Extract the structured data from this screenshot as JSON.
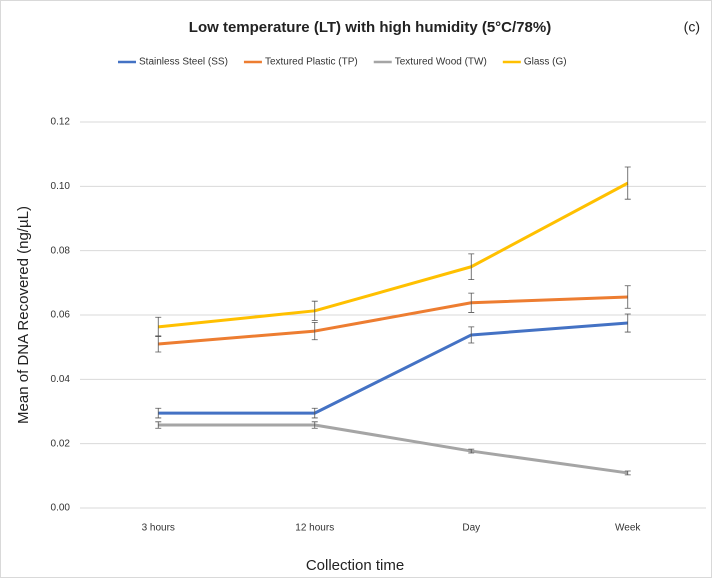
{
  "chart_data": {
    "type": "line",
    "title": "Low temperature (LT) with high humidity (5°C/78%)",
    "panel_label": "(c)",
    "x_label": "Collection time",
    "y_label": "Mean of DNA Recovered (ng/µL)",
    "categories": [
      "3 hours",
      "12 hours",
      "Day",
      "Week"
    ],
    "series": [
      {
        "name": "Stainless Steel (SS)",
        "color": "#4472c4",
        "values": [
          0.0295,
          0.0295,
          0.0538,
          0.0575
        ],
        "errors": [
          0.0015,
          0.0015,
          0.0025,
          0.0028
        ]
      },
      {
        "name": "Textured Plastic (TP)",
        "color": "#ed7d31",
        "values": [
          0.051,
          0.055,
          0.0638,
          0.0656
        ],
        "errors": [
          0.0025,
          0.0027,
          0.003,
          0.0035
        ]
      },
      {
        "name": "Textured Wood (TW)",
        "color": "#a5a5a5",
        "values": [
          0.0258,
          0.0258,
          0.0177,
          0.0109
        ],
        "errors": [
          0.001,
          0.001,
          0.0006,
          0.0006
        ]
      },
      {
        "name": "Glass (G)",
        "color": "#ffc000",
        "values": [
          0.0563,
          0.0613,
          0.075,
          0.101
        ],
        "errors": [
          0.003,
          0.003,
          0.004,
          0.005
        ]
      }
    ],
    "ylim": [
      0,
      0.12
    ],
    "yticks": [
      {
        "value": 0,
        "label": "0.00"
      },
      {
        "value": 0.02,
        "label": "0.02"
      },
      {
        "value": 0.04,
        "label": "0.04"
      },
      {
        "value": 0.06,
        "label": "0.06"
      },
      {
        "value": 0.08,
        "label": "0.08"
      },
      {
        "value": 0.1,
        "label": "0.10"
      },
      {
        "value": 0.12,
        "label": "0.12"
      }
    ],
    "grid": true
  }
}
